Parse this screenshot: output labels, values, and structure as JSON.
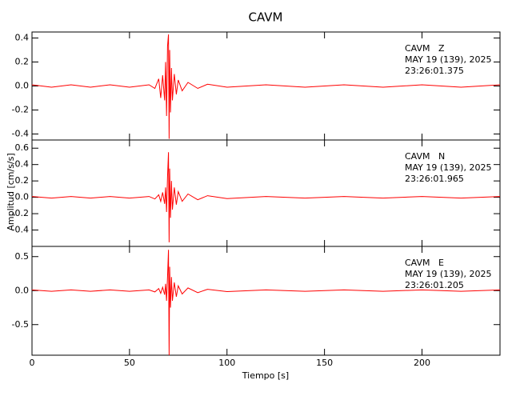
{
  "chart_data": [
    {
      "type": "line",
      "title": "CAVM",
      "annotations": [
        "CAVM   Z",
        "MAY 19 (139), 2025",
        "23:26:01.375"
      ],
      "x": [
        0,
        10,
        20,
        30,
        40,
        50,
        60,
        63,
        65,
        66,
        67,
        68,
        68.5,
        69,
        69.5,
        70,
        70.3,
        70.6,
        71,
        71.5,
        72,
        73,
        74,
        75,
        77,
        80,
        85,
        90,
        100,
        120,
        140,
        160,
        180,
        200,
        220,
        240
      ],
      "series": [
        {
          "color": "#ff0000",
          "values": [
            0.01,
            -0.01,
            0.01,
            -0.01,
            0.01,
            -0.01,
            0.01,
            -0.02,
            0.06,
            -0.1,
            0.09,
            -0.12,
            0.2,
            -0.25,
            0.33,
            0.43,
            -0.44,
            0.3,
            -0.22,
            0.15,
            -0.12,
            0.1,
            -0.07,
            0.05,
            -0.04,
            0.03,
            -0.02,
            0.015,
            -0.01,
            0.01,
            -0.01,
            0.01,
            -0.01,
            0.01,
            -0.01,
            0.01
          ]
        }
      ],
      "ylim": [
        -0.45,
        0.45
      ],
      "yticks": [
        -0.4,
        -0.2,
        {
          "value": 0,
          "label": "0.0"
        },
        0.2,
        0.4
      ]
    },
    {
      "type": "line",
      "y_label": "Amplitud [cm/s/s]",
      "annotations": [
        "CAVM   N",
        "MAY 19 (139), 2025",
        "23:26:01.965"
      ],
      "x": [
        0,
        10,
        20,
        30,
        40,
        50,
        60,
        63,
        65,
        66,
        67,
        68,
        68.5,
        69,
        69.5,
        70,
        70.3,
        70.6,
        71,
        71.5,
        72,
        73,
        74,
        75,
        77,
        80,
        85,
        90,
        100,
        120,
        140,
        160,
        180,
        200,
        220,
        240
      ],
      "series": [
        {
          "color": "#ff0000",
          "values": [
            0.01,
            -0.01,
            0.01,
            -0.01,
            0.01,
            -0.01,
            0.01,
            -0.02,
            0.03,
            -0.05,
            0.06,
            -0.08,
            0.12,
            -0.18,
            0.25,
            0.55,
            -0.55,
            0.35,
            -0.25,
            0.2,
            -0.15,
            0.12,
            -0.09,
            0.07,
            -0.05,
            0.04,
            -0.03,
            0.02,
            -0.015,
            0.01,
            -0.01,
            0.01,
            -0.01,
            0.01,
            -0.01,
            0.01
          ]
        }
      ],
      "ylim": [
        -0.6,
        0.7
      ],
      "yticks": [
        -0.4,
        -0.2,
        {
          "value": 0,
          "label": "0.0"
        },
        0.2,
        0.4,
        0.6
      ]
    },
    {
      "type": "line",
      "x_label": "Tiempo [s]",
      "annotations": [
        "CAVM   E",
        "MAY 19 (139), 2025",
        "23:26:01.205"
      ],
      "x": [
        0,
        10,
        20,
        30,
        40,
        50,
        60,
        63,
        65,
        66,
        67,
        68,
        68.5,
        69,
        69.5,
        70,
        70.3,
        70.6,
        71,
        71.5,
        72,
        73,
        74,
        75,
        77,
        80,
        85,
        90,
        100,
        120,
        140,
        160,
        180,
        200,
        220,
        240
      ],
      "series": [
        {
          "color": "#ff0000",
          "values": [
            0.01,
            -0.01,
            0.01,
            -0.01,
            0.01,
            -0.01,
            0.01,
            -0.02,
            0.03,
            -0.04,
            0.05,
            -0.06,
            0.1,
            -0.15,
            0.2,
            0.6,
            -0.95,
            0.35,
            -0.25,
            0.2,
            -0.15,
            0.12,
            -0.09,
            0.07,
            -0.05,
            0.04,
            -0.03,
            0.02,
            -0.015,
            0.01,
            -0.01,
            0.01,
            -0.01,
            0.01,
            -0.01,
            0.01
          ]
        }
      ],
      "ylim": [
        -0.95,
        0.65
      ],
      "yticks": [
        -0.5,
        {
          "value": 0,
          "label": "0.0"
        },
        0.5
      ],
      "xlim": [
        0,
        240
      ],
      "xticks": [
        0,
        50,
        100,
        150,
        200
      ]
    }
  ]
}
